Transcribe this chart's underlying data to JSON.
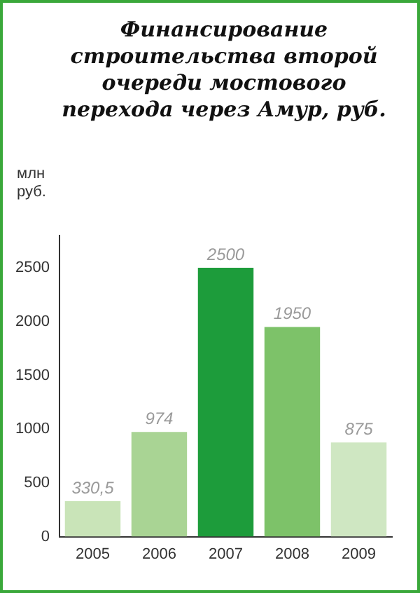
{
  "chart_data": {
    "type": "bar",
    "title": "Финансирование строительства второй очереди мостового перехода через Амур, руб.",
    "ylabel": "млн руб.",
    "categories": [
      "2005",
      "2006",
      "2007",
      "2008",
      "2009"
    ],
    "values": [
      330.5,
      974,
      2500,
      1950,
      875
    ],
    "value_labels": [
      "330,5",
      "974",
      "2500",
      "1950",
      "875"
    ],
    "colors": [
      "#c9e4b8",
      "#a9d494",
      "#1d9c3b",
      "#7dc269",
      "#cfe7c2"
    ],
    "ylim": [
      0,
      2800
    ],
    "yticks": [
      0,
      500,
      1000,
      1500,
      2000,
      2500
    ],
    "grid": false,
    "legend": false
  }
}
